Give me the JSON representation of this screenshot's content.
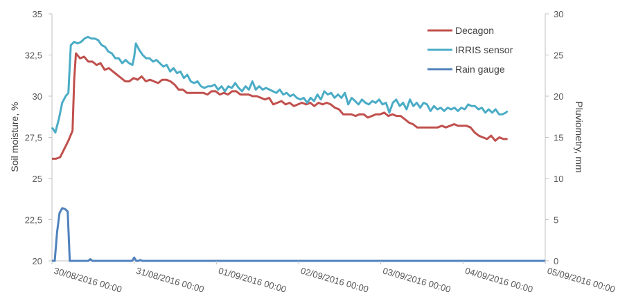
{
  "chart_data": {
    "type": "line",
    "title": "",
    "ylabel": "Soil moisture, %",
    "y2label": "Pluviometry, mm",
    "ylim": [
      20,
      35
    ],
    "y2lim": [
      0,
      30
    ],
    "yticks": [
      "20",
      "22,5",
      "25",
      "27,5",
      "30",
      "32,5",
      "35"
    ],
    "y2ticks": [
      "0",
      "5",
      "10",
      "15",
      "20",
      "25",
      "30"
    ],
    "xlim": [
      0,
      144
    ],
    "xticks": [
      "30/08/2016 00:00",
      "31/08/2016 00:00",
      "01/09/2016 00:00",
      "02/09/2016 00:00",
      "03/09/2016 00:00",
      "04/09/2016 00:00",
      "05/09/2016 00:00"
    ],
    "x_unit": "hours since 30/08/2016 00:00",
    "grid": false,
    "legend_position": "top-right",
    "series": [
      {
        "name": "Decagon",
        "axis": "left",
        "color": "#c0504d",
        "points": [
          [
            0,
            26.2
          ],
          [
            1.2,
            26.2
          ],
          [
            2.4,
            26.3
          ],
          [
            3.6,
            26.8
          ],
          [
            4.8,
            27.3
          ],
          [
            6,
            27.9
          ],
          [
            6.5,
            31
          ],
          [
            7,
            32.6
          ],
          [
            8.2,
            32.3
          ],
          [
            9.4,
            32.4
          ],
          [
            10.6,
            32.1
          ],
          [
            11.8,
            32.1
          ],
          [
            13,
            31.9
          ],
          [
            14.2,
            32.0
          ],
          [
            15.4,
            31.6
          ],
          [
            16.6,
            31.7
          ],
          [
            17.8,
            31.5
          ],
          [
            19,
            31.3
          ],
          [
            20.2,
            31.1
          ],
          [
            21.4,
            30.9
          ],
          [
            22.6,
            30.9
          ],
          [
            23.8,
            31.1
          ],
          [
            25,
            31.0
          ],
          [
            26.2,
            31.2
          ],
          [
            27.4,
            30.9
          ],
          [
            28.6,
            31.0
          ],
          [
            29.8,
            30.9
          ],
          [
            31,
            30.8
          ],
          [
            32.2,
            31.0
          ],
          [
            33.4,
            31.0
          ],
          [
            34.6,
            30.9
          ],
          [
            35.8,
            30.7
          ],
          [
            37,
            30.4
          ],
          [
            38.2,
            30.4
          ],
          [
            39.4,
            30.2
          ],
          [
            40.6,
            30.2
          ],
          [
            41.8,
            30.2
          ],
          [
            43,
            30.2
          ],
          [
            44.2,
            30.2
          ],
          [
            45.4,
            30.1
          ],
          [
            46.6,
            30.3
          ],
          [
            47.8,
            30.3
          ],
          [
            49,
            30.1
          ],
          [
            50.2,
            30.2
          ],
          [
            51.4,
            30.1
          ],
          [
            52.6,
            30.3
          ],
          [
            53.8,
            30.3
          ],
          [
            55,
            30.1
          ],
          [
            56.2,
            30.1
          ],
          [
            57.4,
            30.1
          ],
          [
            58.6,
            30.0
          ],
          [
            59.8,
            30.0
          ],
          [
            61,
            29.9
          ],
          [
            62.2,
            29.8
          ],
          [
            63.4,
            29.9
          ],
          [
            64.6,
            29.5
          ],
          [
            65.8,
            29.6
          ],
          [
            67,
            29.7
          ],
          [
            68.2,
            29.5
          ],
          [
            69.4,
            29.6
          ],
          [
            70.6,
            29.4
          ],
          [
            71.8,
            29.5
          ],
          [
            73,
            29.6
          ],
          [
            74.2,
            29.5
          ],
          [
            75.4,
            29.6
          ],
          [
            76.6,
            29.4
          ],
          [
            77.8,
            29.6
          ],
          [
            79,
            29.5
          ],
          [
            80.2,
            29.6
          ],
          [
            81.4,
            29.5
          ],
          [
            82.6,
            29.3
          ],
          [
            83.8,
            29.2
          ],
          [
            85,
            28.9
          ],
          [
            86.2,
            28.9
          ],
          [
            87.4,
            28.9
          ],
          [
            88.6,
            28.8
          ],
          [
            89.8,
            28.9
          ],
          [
            91,
            28.9
          ],
          [
            92.2,
            28.7
          ],
          [
            93.4,
            28.8
          ],
          [
            94.6,
            28.9
          ],
          [
            95.8,
            28.9
          ],
          [
            97,
            29.0
          ],
          [
            98.2,
            28.8
          ],
          [
            99.4,
            28.9
          ],
          [
            100.6,
            28.8
          ],
          [
            101.8,
            28.8
          ],
          [
            103,
            28.6
          ],
          [
            104.2,
            28.4
          ],
          [
            105.4,
            28.3
          ],
          [
            106.6,
            28.1
          ],
          [
            107.8,
            28.1
          ],
          [
            109,
            28.1
          ],
          [
            110.2,
            28.1
          ],
          [
            111.4,
            28.1
          ],
          [
            112.6,
            28.1
          ],
          [
            113.8,
            28.2
          ],
          [
            115,
            28.1
          ],
          [
            116.2,
            28.2
          ],
          [
            117.4,
            28.3
          ],
          [
            118.6,
            28.2
          ],
          [
            119.8,
            28.2
          ],
          [
            121,
            28.2
          ],
          [
            122.2,
            28.1
          ],
          [
            123.4,
            27.8
          ],
          [
            124.6,
            27.6
          ],
          [
            125.8,
            27.5
          ],
          [
            127,
            27.4
          ],
          [
            128.2,
            27.6
          ],
          [
            129.4,
            27.3
          ],
          [
            130.6,
            27.5
          ],
          [
            131.8,
            27.4
          ],
          [
            133,
            27.4
          ]
        ]
      },
      {
        "name": "IRRIS sensor",
        "axis": "left",
        "color": "#4bacc6",
        "points": [
          [
            0,
            28.1
          ],
          [
            1,
            27.8
          ],
          [
            2,
            28.6
          ],
          [
            3,
            29.6
          ],
          [
            4,
            30.0
          ],
          [
            4.8,
            30.2
          ],
          [
            5.5,
            33.1
          ],
          [
            6.5,
            33.3
          ],
          [
            7.5,
            33.2
          ],
          [
            8.5,
            33.3
          ],
          [
            9.5,
            33.5
          ],
          [
            10.5,
            33.6
          ],
          [
            11.5,
            33.5
          ],
          [
            12.5,
            33.5
          ],
          [
            13.5,
            33.4
          ],
          [
            14.5,
            33.1
          ],
          [
            15.5,
            33.0
          ],
          [
            16.5,
            32.7
          ],
          [
            17.5,
            32.6
          ],
          [
            18.5,
            32.3
          ],
          [
            19.5,
            32.3
          ],
          [
            20.5,
            32.0
          ],
          [
            21.5,
            32.2
          ],
          [
            22.5,
            32.0
          ],
          [
            23.5,
            31.9
          ],
          [
            24,
            32.4
          ],
          [
            24.5,
            33.2
          ],
          [
            25.5,
            32.8
          ],
          [
            26.5,
            32.5
          ],
          [
            27.5,
            32.3
          ],
          [
            28.5,
            32.3
          ],
          [
            29.5,
            32.1
          ],
          [
            30.5,
            32.2
          ],
          [
            31.5,
            32.0
          ],
          [
            32.5,
            31.8
          ],
          [
            33.5,
            31.9
          ],
          [
            34.5,
            31.5
          ],
          [
            35.5,
            31.7
          ],
          [
            36.5,
            31.4
          ],
          [
            37.5,
            31.5
          ],
          [
            38.5,
            31.1
          ],
          [
            39.5,
            31.3
          ],
          [
            40.5,
            30.9
          ],
          [
            41.5,
            30.8
          ],
          [
            42.5,
            30.9
          ],
          [
            43.5,
            30.6
          ],
          [
            44.5,
            30.5
          ],
          [
            45.5,
            30.6
          ],
          [
            46.5,
            30.6
          ],
          [
            47.5,
            30.7
          ],
          [
            48.5,
            30.4
          ],
          [
            49.5,
            30.6
          ],
          [
            50.5,
            30.3
          ],
          [
            51.5,
            30.6
          ],
          [
            52.5,
            30.5
          ],
          [
            53.5,
            30.8
          ],
          [
            54.5,
            30.5
          ],
          [
            55.5,
            30.3
          ],
          [
            56.5,
            30.6
          ],
          [
            57.5,
            30.4
          ],
          [
            58.5,
            30.9
          ],
          [
            59.5,
            30.4
          ],
          [
            60.5,
            30.6
          ],
          [
            61.5,
            30.4
          ],
          [
            62.5,
            30.5
          ],
          [
            63.5,
            30.4
          ],
          [
            64.5,
            30.3
          ],
          [
            65.5,
            30.2
          ],
          [
            66.5,
            30.4
          ],
          [
            67.5,
            30.1
          ],
          [
            68.5,
            30.2
          ],
          [
            69.5,
            30.0
          ],
          [
            70.5,
            30.1
          ],
          [
            71.5,
            29.9
          ],
          [
            72.5,
            29.8
          ],
          [
            73.5,
            29.9
          ],
          [
            74.5,
            29.6
          ],
          [
            75.5,
            29.9
          ],
          [
            76.5,
            29.7
          ],
          [
            77.5,
            30.1
          ],
          [
            78.5,
            29.8
          ],
          [
            79.5,
            30.3
          ],
          [
            80.5,
            30.1
          ],
          [
            81.5,
            30.2
          ],
          [
            82.5,
            29.9
          ],
          [
            83.5,
            30.1
          ],
          [
            84.5,
            29.9
          ],
          [
            85.5,
            30.2
          ],
          [
            86.5,
            29.5
          ],
          [
            87.5,
            29.9
          ],
          [
            88.5,
            29.7
          ],
          [
            89.5,
            29.5
          ],
          [
            90.5,
            29.8
          ],
          [
            91.5,
            29.6
          ],
          [
            92.5,
            29.5
          ],
          [
            93.5,
            29.7
          ],
          [
            94.5,
            29.6
          ],
          [
            95.5,
            29.8
          ],
          [
            96.5,
            29.5
          ],
          [
            97.5,
            29.6
          ],
          [
            98.5,
            29.0
          ],
          [
            99.5,
            29.6
          ],
          [
            100.5,
            29.8
          ],
          [
            101.5,
            29.4
          ],
          [
            102.5,
            29.6
          ],
          [
            103.5,
            29.2
          ],
          [
            104.5,
            29.8
          ],
          [
            105.5,
            29.4
          ],
          [
            106.5,
            29.6
          ],
          [
            107.5,
            29.3
          ],
          [
            108.5,
            29.6
          ],
          [
            109.5,
            29.5
          ],
          [
            110.5,
            29.1
          ],
          [
            111.5,
            29.4
          ],
          [
            112.5,
            29.2
          ],
          [
            113.5,
            29.3
          ],
          [
            114.5,
            29.1
          ],
          [
            115.5,
            29.3
          ],
          [
            116.5,
            29.2
          ],
          [
            117.5,
            29.3
          ],
          [
            118.5,
            29.1
          ],
          [
            119.5,
            29.3
          ],
          [
            120.5,
            29.2
          ],
          [
            121.5,
            29.5
          ],
          [
            122.5,
            29.4
          ],
          [
            123.5,
            29.4
          ],
          [
            124.5,
            29.2
          ],
          [
            125.5,
            29.3
          ],
          [
            126.5,
            29.0
          ],
          [
            127.5,
            29.2
          ],
          [
            128.5,
            29.0
          ],
          [
            129.5,
            29.2
          ],
          [
            130.5,
            28.9
          ],
          [
            131.5,
            28.9
          ],
          [
            132.5,
            29.0
          ],
          [
            133,
            29.1
          ]
        ]
      },
      {
        "name": "Rain gauge",
        "axis": "right",
        "color": "#4f81bd",
        "points": [
          [
            0,
            0
          ],
          [
            0.8,
            0
          ],
          [
            1.5,
            3.5
          ],
          [
            2.2,
            5.8
          ],
          [
            3,
            6.4
          ],
          [
            3.8,
            6.3
          ],
          [
            4.6,
            6.0
          ],
          [
            5.2,
            0
          ],
          [
            10.6,
            0
          ],
          [
            11.2,
            0.2
          ],
          [
            11.8,
            0
          ],
          [
            23.4,
            0
          ],
          [
            24,
            0.4
          ],
          [
            24.6,
            0
          ],
          [
            25.2,
            0
          ],
          [
            25.8,
            0.1
          ],
          [
            26.4,
            0
          ],
          [
            144,
            0
          ]
        ]
      }
    ]
  }
}
